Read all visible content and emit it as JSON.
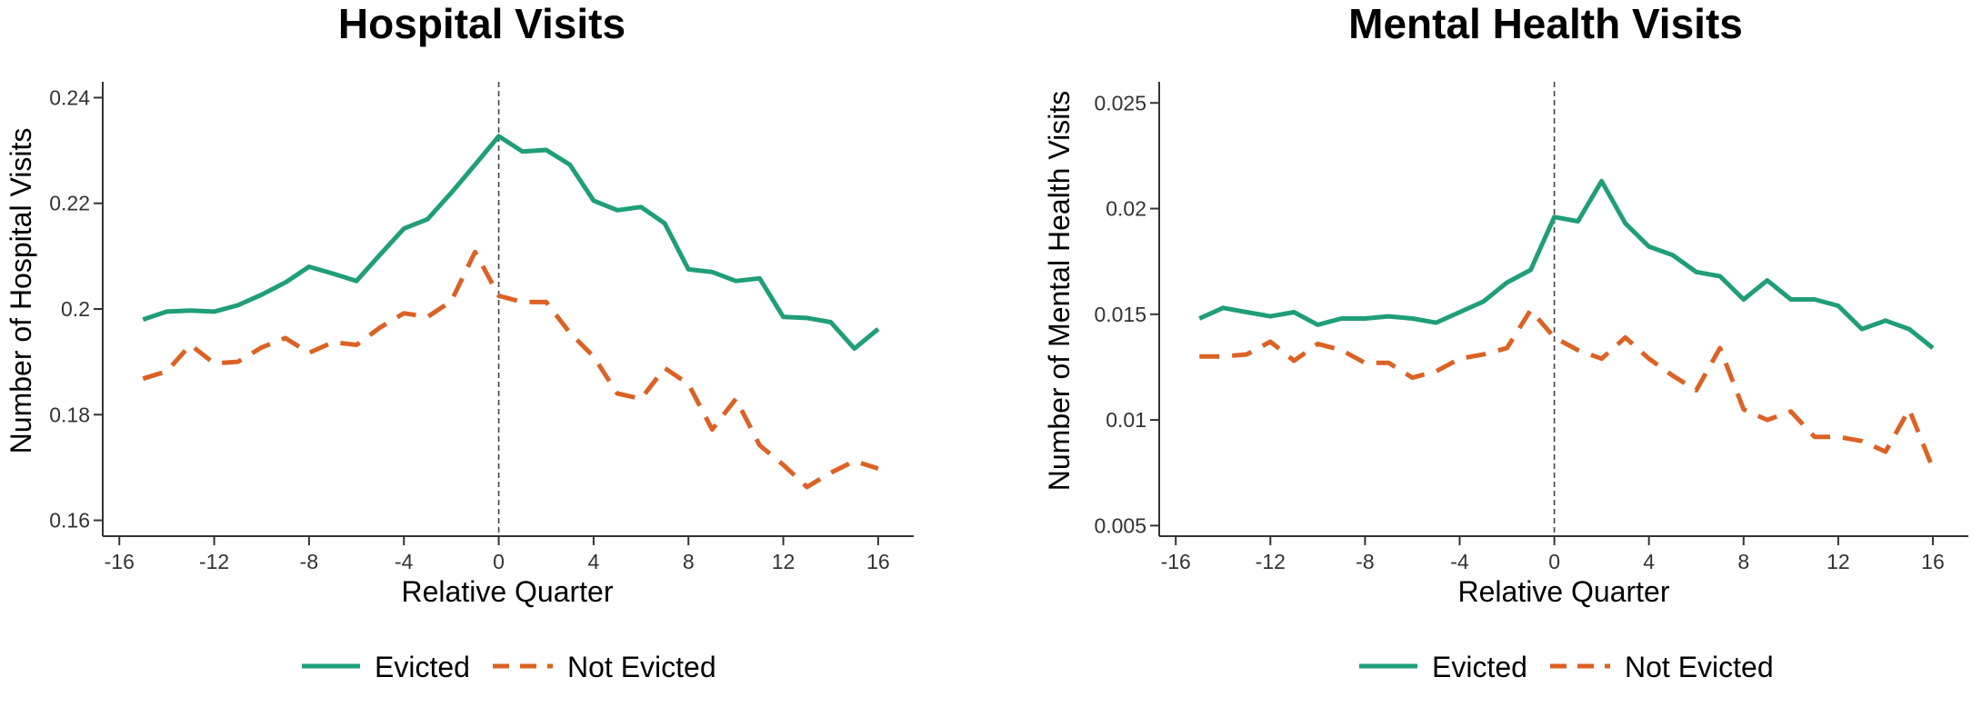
{
  "colors": {
    "evicted": "#1f9e78",
    "not_evicted": "#dc6224",
    "axis": "#333333",
    "reference_line": "#444444"
  },
  "chart_data": [
    {
      "type": "line",
      "title": "Hospital Visits",
      "xlabel": "Relative Quarter",
      "ylabel": "Number of Hospital Visits",
      "xlim": [
        -16.7,
        17.5
      ],
      "ylim": [
        0.157,
        0.243
      ],
      "xticks": [
        -16,
        -12,
        -8,
        -4,
        0,
        4,
        8,
        12,
        16
      ],
      "xtick_labels": [
        "-16",
        "-12",
        "-8",
        "-4",
        "0",
        "4",
        "8",
        "12",
        "16"
      ],
      "yticks": [
        0.16,
        0.18,
        0.2,
        0.22,
        0.24
      ],
      "ytick_labels": [
        "0.16",
        "0.18",
        "0.2",
        "0.22",
        "0.24"
      ],
      "vline": 0,
      "legend": "bottom-center",
      "x": [
        -15,
        -14,
        -13,
        -12,
        -11,
        -10,
        -9,
        -8,
        -7,
        -6,
        -5,
        -4,
        -3,
        -2,
        -1,
        0,
        1,
        2,
        3,
        4,
        5,
        6,
        7,
        8,
        9,
        10,
        11,
        12,
        13,
        14,
        15,
        16
      ],
      "series": [
        {
          "name": "Evicted",
          "style": "solid",
          "values": [
            0.198,
            0.1995,
            0.1997,
            0.1995,
            0.2007,
            0.2027,
            0.205,
            0.208,
            0.2067,
            0.2053,
            0.2103,
            0.2152,
            0.217,
            0.222,
            0.2273,
            0.2327,
            0.2298,
            0.2301,
            0.2273,
            0.2205,
            0.2187,
            0.2193,
            0.2162,
            0.2075,
            0.207,
            0.2053,
            0.2058,
            0.1985,
            0.1983,
            0.1975,
            0.1925,
            0.1962
          ]
        },
        {
          "name": "Not Evicted",
          "style": "dashed",
          "values": [
            0.1868,
            0.1882,
            0.1932,
            0.1897,
            0.19,
            0.1927,
            0.1945,
            0.1917,
            0.1937,
            0.1932,
            0.1965,
            0.1992,
            0.1985,
            0.2015,
            0.2108,
            0.2025,
            0.2013,
            0.2013,
            0.1955,
            0.191,
            0.184,
            0.183,
            0.1888,
            0.1858,
            0.1772,
            0.183,
            0.1742,
            0.1705,
            0.1663,
            0.169,
            0.1712,
            0.1698
          ]
        }
      ]
    },
    {
      "type": "line",
      "title": "Mental Health Visits",
      "xlabel": "Relative Quarter",
      "ylabel": "Number of Mental Health Visits",
      "xlim": [
        -16.7,
        17.5
      ],
      "ylim": [
        0.0045,
        0.026
      ],
      "xticks": [
        -16,
        -12,
        -8,
        -4,
        0,
        4,
        8,
        12,
        16
      ],
      "xtick_labels": [
        "-16",
        "-12",
        "-8",
        "-4",
        "0",
        "4",
        "8",
        "12",
        "16"
      ],
      "yticks": [
        0.005,
        0.01,
        0.015,
        0.02,
        0.025
      ],
      "ytick_labels": [
        "0.005",
        "0.01",
        "0.015",
        "0.02",
        "0.025"
      ],
      "vline": 0,
      "legend": "bottom-center",
      "x": [
        -15,
        -14,
        -13,
        -12,
        -11,
        -10,
        -9,
        -8,
        -7,
        -6,
        -5,
        -4,
        -3,
        -2,
        -1,
        0,
        1,
        2,
        3,
        4,
        5,
        6,
        7,
        8,
        9,
        10,
        11,
        12,
        13,
        14,
        15,
        16
      ],
      "series": [
        {
          "name": "Evicted",
          "style": "solid",
          "values": [
            0.0148,
            0.0153,
            0.0151,
            0.0149,
            0.0151,
            0.0145,
            0.0148,
            0.0148,
            0.0149,
            0.0148,
            0.0146,
            0.0151,
            0.0156,
            0.0165,
            0.0171,
            0.0196,
            0.0194,
            0.0213,
            0.0193,
            0.0182,
            0.0178,
            0.017,
            0.0168,
            0.0157,
            0.0166,
            0.0157,
            0.0157,
            0.0154,
            0.0143,
            0.0147,
            0.0143,
            0.0134
          ]
        },
        {
          "name": "Not Evicted",
          "style": "dashed",
          "values": [
            0.013,
            0.013,
            0.0131,
            0.0137,
            0.0128,
            0.0136,
            0.0133,
            0.0127,
            0.0127,
            0.012,
            0.0123,
            0.0129,
            0.0131,
            0.0134,
            0.0152,
            0.0139,
            0.0133,
            0.0129,
            0.0139,
            0.0129,
            0.0121,
            0.0114,
            0.0134,
            0.0105,
            0.01,
            0.0104,
            0.0092,
            0.0092,
            0.009,
            0.0085,
            0.0105,
            0.0077
          ]
        }
      ]
    }
  ]
}
